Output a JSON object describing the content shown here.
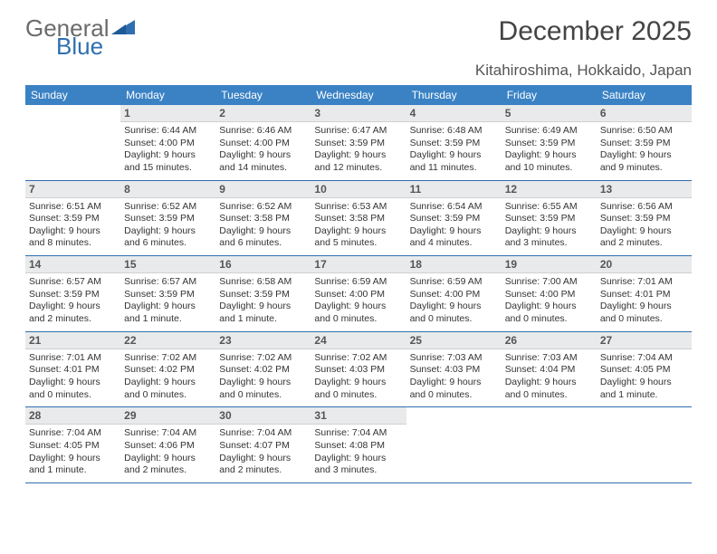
{
  "logo": {
    "word1": "General",
    "word2": "Blue"
  },
  "title": "December 2025",
  "location": "Kitahiroshima, Hokkaido, Japan",
  "colors": {
    "header_bg": "#3a82c4",
    "header_text": "#ffffff",
    "rule": "#2f6fb0",
    "daynum_bg": "#e9eaeb",
    "logo_gray": "#6b6b6b",
    "logo_blue": "#2f6fb0"
  },
  "weekdays": [
    "Sunday",
    "Monday",
    "Tuesday",
    "Wednesday",
    "Thursday",
    "Friday",
    "Saturday"
  ],
  "weeks": [
    [
      {
        "n": "",
        "sunrise": "",
        "sunset": "",
        "daylight": ""
      },
      {
        "n": "1",
        "sunrise": "Sunrise: 6:44 AM",
        "sunset": "Sunset: 4:00 PM",
        "daylight": "Daylight: 9 hours and 15 minutes."
      },
      {
        "n": "2",
        "sunrise": "Sunrise: 6:46 AM",
        "sunset": "Sunset: 4:00 PM",
        "daylight": "Daylight: 9 hours and 14 minutes."
      },
      {
        "n": "3",
        "sunrise": "Sunrise: 6:47 AM",
        "sunset": "Sunset: 3:59 PM",
        "daylight": "Daylight: 9 hours and 12 minutes."
      },
      {
        "n": "4",
        "sunrise": "Sunrise: 6:48 AM",
        "sunset": "Sunset: 3:59 PM",
        "daylight": "Daylight: 9 hours and 11 minutes."
      },
      {
        "n": "5",
        "sunrise": "Sunrise: 6:49 AM",
        "sunset": "Sunset: 3:59 PM",
        "daylight": "Daylight: 9 hours and 10 minutes."
      },
      {
        "n": "6",
        "sunrise": "Sunrise: 6:50 AM",
        "sunset": "Sunset: 3:59 PM",
        "daylight": "Daylight: 9 hours and 9 minutes."
      }
    ],
    [
      {
        "n": "7",
        "sunrise": "Sunrise: 6:51 AM",
        "sunset": "Sunset: 3:59 PM",
        "daylight": "Daylight: 9 hours and 8 minutes."
      },
      {
        "n": "8",
        "sunrise": "Sunrise: 6:52 AM",
        "sunset": "Sunset: 3:59 PM",
        "daylight": "Daylight: 9 hours and 6 minutes."
      },
      {
        "n": "9",
        "sunrise": "Sunrise: 6:52 AM",
        "sunset": "Sunset: 3:58 PM",
        "daylight": "Daylight: 9 hours and 6 minutes."
      },
      {
        "n": "10",
        "sunrise": "Sunrise: 6:53 AM",
        "sunset": "Sunset: 3:58 PM",
        "daylight": "Daylight: 9 hours and 5 minutes."
      },
      {
        "n": "11",
        "sunrise": "Sunrise: 6:54 AM",
        "sunset": "Sunset: 3:59 PM",
        "daylight": "Daylight: 9 hours and 4 minutes."
      },
      {
        "n": "12",
        "sunrise": "Sunrise: 6:55 AM",
        "sunset": "Sunset: 3:59 PM",
        "daylight": "Daylight: 9 hours and 3 minutes."
      },
      {
        "n": "13",
        "sunrise": "Sunrise: 6:56 AM",
        "sunset": "Sunset: 3:59 PM",
        "daylight": "Daylight: 9 hours and 2 minutes."
      }
    ],
    [
      {
        "n": "14",
        "sunrise": "Sunrise: 6:57 AM",
        "sunset": "Sunset: 3:59 PM",
        "daylight": "Daylight: 9 hours and 2 minutes."
      },
      {
        "n": "15",
        "sunrise": "Sunrise: 6:57 AM",
        "sunset": "Sunset: 3:59 PM",
        "daylight": "Daylight: 9 hours and 1 minute."
      },
      {
        "n": "16",
        "sunrise": "Sunrise: 6:58 AM",
        "sunset": "Sunset: 3:59 PM",
        "daylight": "Daylight: 9 hours and 1 minute."
      },
      {
        "n": "17",
        "sunrise": "Sunrise: 6:59 AM",
        "sunset": "Sunset: 4:00 PM",
        "daylight": "Daylight: 9 hours and 0 minutes."
      },
      {
        "n": "18",
        "sunrise": "Sunrise: 6:59 AM",
        "sunset": "Sunset: 4:00 PM",
        "daylight": "Daylight: 9 hours and 0 minutes."
      },
      {
        "n": "19",
        "sunrise": "Sunrise: 7:00 AM",
        "sunset": "Sunset: 4:00 PM",
        "daylight": "Daylight: 9 hours and 0 minutes."
      },
      {
        "n": "20",
        "sunrise": "Sunrise: 7:01 AM",
        "sunset": "Sunset: 4:01 PM",
        "daylight": "Daylight: 9 hours and 0 minutes."
      }
    ],
    [
      {
        "n": "21",
        "sunrise": "Sunrise: 7:01 AM",
        "sunset": "Sunset: 4:01 PM",
        "daylight": "Daylight: 9 hours and 0 minutes."
      },
      {
        "n": "22",
        "sunrise": "Sunrise: 7:02 AM",
        "sunset": "Sunset: 4:02 PM",
        "daylight": "Daylight: 9 hours and 0 minutes."
      },
      {
        "n": "23",
        "sunrise": "Sunrise: 7:02 AM",
        "sunset": "Sunset: 4:02 PM",
        "daylight": "Daylight: 9 hours and 0 minutes."
      },
      {
        "n": "24",
        "sunrise": "Sunrise: 7:02 AM",
        "sunset": "Sunset: 4:03 PM",
        "daylight": "Daylight: 9 hours and 0 minutes."
      },
      {
        "n": "25",
        "sunrise": "Sunrise: 7:03 AM",
        "sunset": "Sunset: 4:03 PM",
        "daylight": "Daylight: 9 hours and 0 minutes."
      },
      {
        "n": "26",
        "sunrise": "Sunrise: 7:03 AM",
        "sunset": "Sunset: 4:04 PM",
        "daylight": "Daylight: 9 hours and 0 minutes."
      },
      {
        "n": "27",
        "sunrise": "Sunrise: 7:04 AM",
        "sunset": "Sunset: 4:05 PM",
        "daylight": "Daylight: 9 hours and 1 minute."
      }
    ],
    [
      {
        "n": "28",
        "sunrise": "Sunrise: 7:04 AM",
        "sunset": "Sunset: 4:05 PM",
        "daylight": "Daylight: 9 hours and 1 minute."
      },
      {
        "n": "29",
        "sunrise": "Sunrise: 7:04 AM",
        "sunset": "Sunset: 4:06 PM",
        "daylight": "Daylight: 9 hours and 2 minutes."
      },
      {
        "n": "30",
        "sunrise": "Sunrise: 7:04 AM",
        "sunset": "Sunset: 4:07 PM",
        "daylight": "Daylight: 9 hours and 2 minutes."
      },
      {
        "n": "31",
        "sunrise": "Sunrise: 7:04 AM",
        "sunset": "Sunset: 4:08 PM",
        "daylight": "Daylight: 9 hours and 3 minutes."
      },
      {
        "n": "",
        "sunrise": "",
        "sunset": "",
        "daylight": ""
      },
      {
        "n": "",
        "sunrise": "",
        "sunset": "",
        "daylight": ""
      },
      {
        "n": "",
        "sunrise": "",
        "sunset": "",
        "daylight": ""
      }
    ]
  ]
}
